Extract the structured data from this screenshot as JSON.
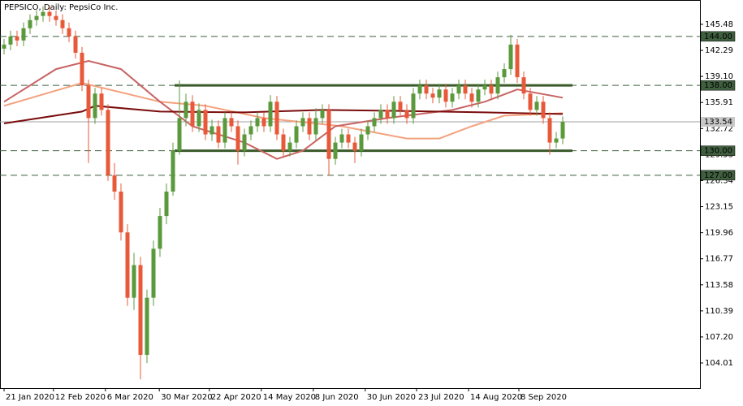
{
  "chart_data": {
    "type": "candlestick",
    "title": "PEPSICO, Daily:  PepsiCo Inc.",
    "up_color": "#5b9a3c",
    "down_color": "#e8593a",
    "xlim": [
      -0.625,
      107.125
    ],
    "xticks": [
      {
        "value": 0,
        "label": "21 Jan 2020"
      },
      {
        "value": 7.6,
        "label": "12 Feb 2020"
      },
      {
        "value": 15.6,
        "label": "6 Mar 2020"
      },
      {
        "value": 23.9,
        "label": "30 Mar 2020"
      },
      {
        "value": 31.6,
        "label": "22 Apr 2020"
      },
      {
        "value": 39.6,
        "label": "14 May 2020"
      },
      {
        "value": 47.6,
        "label": "8 Jun 2020"
      },
      {
        "value": 55.6,
        "label": "30 Jun 2020"
      },
      {
        "value": 63.5,
        "label": "23 Jul 2020"
      },
      {
        "value": 71.5,
        "label": "14 Aug 2020"
      },
      {
        "value": 79.25,
        "label": "8 Sep 2020"
      }
    ],
    "ylim": [
      100.93,
      148.26
    ],
    "yticks": [
      145.48,
      142.29,
      {
        "value": 139.1,
        "label": "139.10"
      },
      135.91,
      132.72,
      129.53,
      126.34,
      123.15,
      119.96,
      116.77,
      113.58,
      110.39,
      {
        "value": 107.2,
        "label": "107.20"
      },
      104.01
    ],
    "open": [
      142.5,
      143,
      144,
      143.5,
      145,
      146,
      146.5,
      147,
      146.5,
      146,
      145,
      144,
      142,
      138,
      134,
      137,
      135,
      127,
      125,
      120,
      112,
      116,
      105,
      112,
      118,
      122,
      125,
      130,
      134,
      136,
      133,
      135,
      132,
      133,
      131,
      134,
      133,
      130,
      132,
      133,
      134,
      133,
      136,
      132,
      130,
      131,
      133,
      134,
      132,
      134,
      135,
      129,
      131,
      132,
      131,
      130,
      132,
      133,
      134,
      135,
      134,
      136,
      135,
      134,
      137,
      138,
      137,
      136.5,
      137.5,
      136,
      137,
      138,
      137,
      136,
      137.5,
      138,
      137,
      139,
      140,
      143,
      139,
      137,
      135,
      136,
      134,
      131,
      131.5
    ],
    "high": [
      143.7,
      144.7,
      144.7,
      145.7,
      146.7,
      147.2,
      147.7,
      147.7,
      147.2,
      146.7,
      145.7,
      144.7,
      142.7,
      138.7,
      137.7,
      137.7,
      135.7,
      128.5,
      126,
      121,
      117.5,
      117,
      113,
      119,
      123,
      126,
      131,
      138.6,
      137,
      136.8,
      135.8,
      135.7,
      133.8,
      133.7,
      134.7,
      134.7,
      133.7,
      132.7,
      133.7,
      134.7,
      134.7,
      136.8,
      136.7,
      132.7,
      131.7,
      133.7,
      134.7,
      134.7,
      135.2,
      135.7,
      135.7,
      131.7,
      132.7,
      132.7,
      131.7,
      132.7,
      133.7,
      134.7,
      135.7,
      135.7,
      136.7,
      136.7,
      135.7,
      137.7,
      138.7,
      138.7,
      137.7,
      138.2,
      138.2,
      137.7,
      138.7,
      138.7,
      137.7,
      138.2,
      138.7,
      138.7,
      139.7,
      140.7,
      144.2,
      143.7,
      139.7,
      137.7,
      136.7,
      136.7,
      134.7,
      132.3,
      134.2
    ],
    "low": [
      141.8,
      142.3,
      142.8,
      142.8,
      144.3,
      145.3,
      145.8,
      145.8,
      145.3,
      144.3,
      143.3,
      141.3,
      137.3,
      128.5,
      133.3,
      134.3,
      126.3,
      124,
      119,
      111,
      110.5,
      102,
      104,
      111,
      117,
      121,
      124.5,
      129.5,
      133,
      132.3,
      132.3,
      131.3,
      131.2,
      130.3,
      130.3,
      132.3,
      128.3,
      129.3,
      131.3,
      132.3,
      132.3,
      132.3,
      131.3,
      129.3,
      129.3,
      130.3,
      132.3,
      131.3,
      131.3,
      133.3,
      127,
      128.3,
      130.3,
      130.3,
      128.5,
      129.3,
      131.3,
      132.3,
      133.3,
      133.3,
      133.3,
      134.3,
      133.3,
      133.3,
      136.3,
      136.3,
      135.8,
      135.8,
      135.3,
      135.3,
      136.3,
      136.3,
      135.3,
      135.3,
      136.8,
      136.3,
      136.3,
      138.3,
      139.3,
      138.3,
      136.3,
      134.3,
      134.3,
      133.3,
      129.5,
      130.3,
      130.8
    ],
    "close": [
      143,
      144,
      143.5,
      145,
      146,
      146.5,
      147,
      146.5,
      146,
      145,
      144,
      142,
      138,
      134,
      137,
      135,
      127,
      125,
      120,
      112,
      116,
      105,
      112,
      118,
      122,
      125,
      130,
      134,
      136,
      133,
      135,
      132,
      133,
      131,
      134,
      133,
      130,
      132,
      133,
      134,
      133,
      136,
      132,
      130,
      131,
      133,
      134,
      132,
      134,
      135,
      129,
      131,
      132,
      131,
      130,
      132,
      133,
      134,
      135,
      134,
      136,
      135,
      134,
      137,
      138,
      137,
      136.5,
      137.5,
      136,
      137,
      138,
      137,
      136,
      137.5,
      138,
      137,
      139,
      140,
      143,
      139,
      137,
      135,
      136,
      134,
      131,
      131.5,
      133.54
    ],
    "moving_averages": [
      {
        "color": "#f4a27e",
        "x": [
          0,
          12,
          24,
          31,
          40,
          52,
          62,
          67,
          72,
          77,
          86
        ],
        "values": [
          135.5,
          138.3,
          136,
          135.5,
          134,
          133,
          131.5,
          131.5,
          133,
          134.3,
          134.6
        ]
      },
      {
        "color": "#c86464",
        "x": [
          0,
          8,
          13,
          18,
          24,
          29,
          37,
          42,
          46,
          51,
          59,
          69,
          74,
          79,
          86
        ],
        "values": [
          136,
          140,
          141,
          140,
          136,
          133,
          131,
          129,
          130,
          133,
          134,
          135,
          136,
          137.5,
          136.5
        ]
      },
      {
        "color": "#7a0c0c",
        "x": [
          0,
          12,
          14,
          24,
          37,
          49,
          59,
          74,
          86
        ],
        "values": [
          133.35,
          134.8,
          135.5,
          134.8,
          134.7,
          135,
          134.9,
          134.7,
          134.5
        ]
      }
    ],
    "channel": {
      "color": "#3a5a2a",
      "x": [
        26.25,
        87.5
      ],
      "upper": 138,
      "lower": 130
    },
    "levels": [
      {
        "value": 144,
        "label": "144.00"
      },
      {
        "value": 138,
        "label": "138.00"
      },
      {
        "value": 130,
        "label": "130.00"
      },
      {
        "value": 127,
        "label": "127.00"
      }
    ],
    "last_price": {
      "value": 133.54,
      "label": "133.54"
    }
  }
}
